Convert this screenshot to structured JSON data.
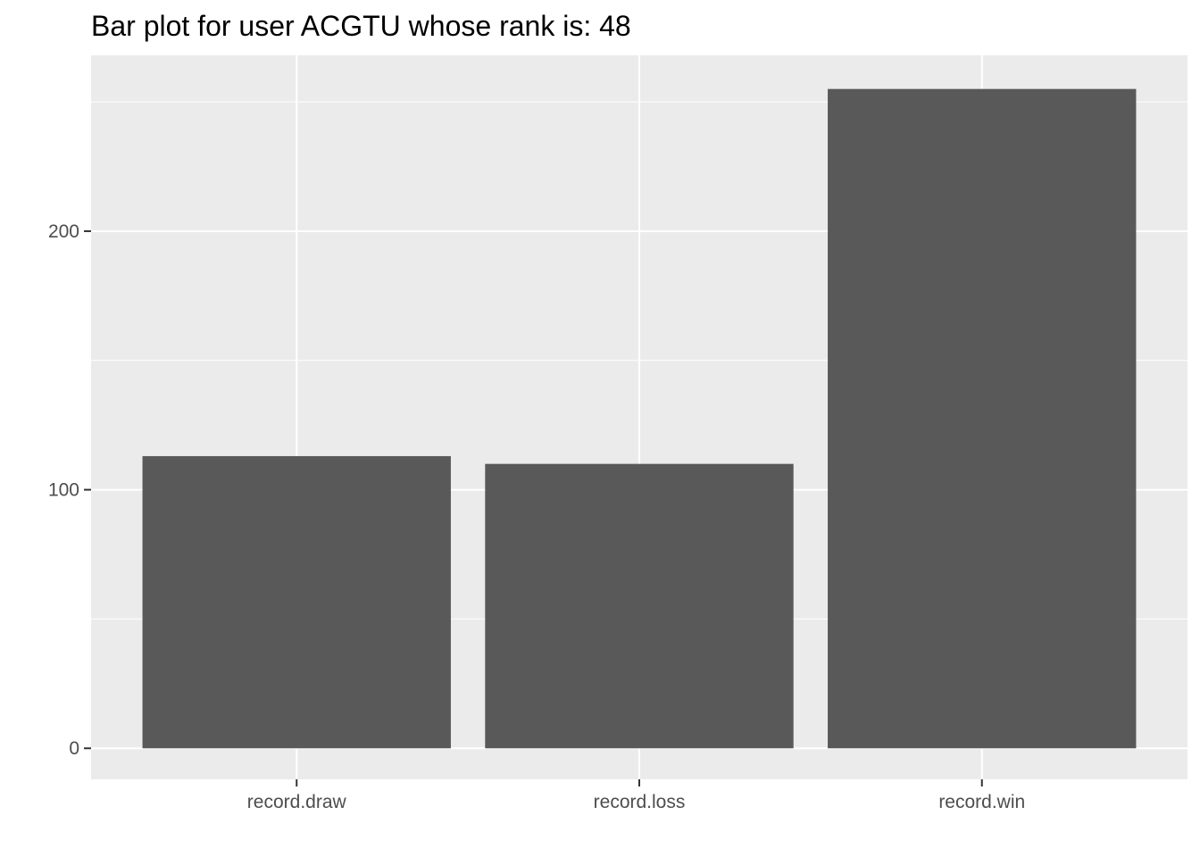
{
  "chart_data": {
    "type": "bar",
    "title": "Bar plot for user ACGTU whose rank is: 48",
    "xlabel": "",
    "ylabel": "",
    "categories": [
      "record.draw",
      "record.loss",
      "record.win"
    ],
    "values": [
      113,
      110,
      255
    ],
    "ylim": [
      -12,
      268
    ],
    "yticks": [
      0,
      100,
      200
    ],
    "grid": true,
    "legend": "none",
    "colors": {
      "panel": "#ebebeb",
      "grid": "#ffffff",
      "bar": "#595959",
      "tick": "#333333"
    }
  }
}
